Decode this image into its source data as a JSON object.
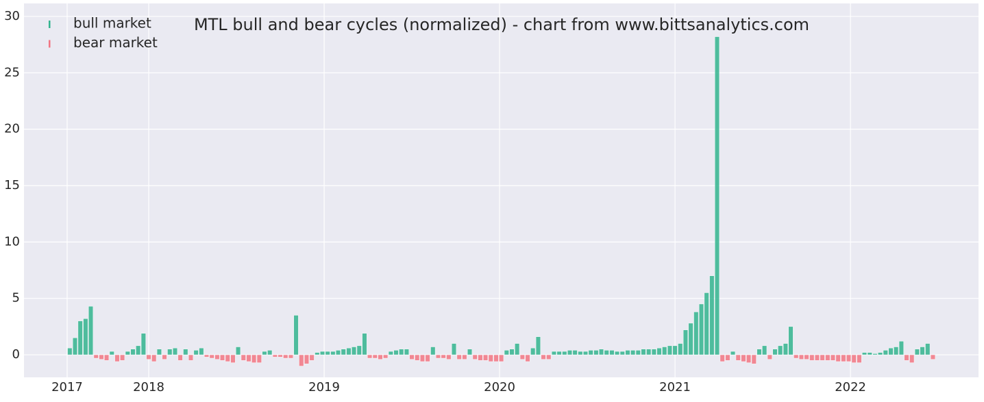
{
  "chart_data": {
    "type": "bar",
    "title": "MTL bull and bear cycles (normalized)  - chart from www.bittsanalytics.com",
    "x": [
      2017.55,
      2017.58,
      2017.61,
      2017.64,
      2017.67,
      2017.7,
      2017.73,
      2017.76,
      2017.79,
      2017.82,
      2017.85,
      2017.88,
      2017.91,
      2017.94,
      2017.97,
      2018,
      2018.03,
      2018.06,
      2018.09,
      2018.12,
      2018.15,
      2018.18,
      2018.21,
      2018.24,
      2018.27,
      2018.3,
      2018.33,
      2018.36,
      2018.39,
      2018.42,
      2018.45,
      2018.48,
      2018.51,
      2018.54,
      2018.57,
      2018.6,
      2018.63,
      2018.66,
      2018.69,
      2018.72,
      2018.75,
      2018.78,
      2018.81,
      2018.84,
      2018.87,
      2018.9,
      2018.93,
      2018.96,
      2018.99,
      2019.02,
      2019.05,
      2019.08,
      2019.11,
      2019.14,
      2019.17,
      2019.2,
      2019.23,
      2019.26,
      2019.29,
      2019.32,
      2019.35,
      2019.38,
      2019.41,
      2019.44,
      2019.47,
      2019.5,
      2019.53,
      2019.56,
      2019.59,
      2019.62,
      2019.65,
      2019.68,
      2019.71,
      2019.74,
      2019.77,
      2019.8,
      2019.83,
      2019.86,
      2019.89,
      2019.92,
      2019.95,
      2019.98,
      2020.01,
      2020.04,
      2020.07,
      2020.1,
      2020.13,
      2020.16,
      2020.19,
      2020.22,
      2020.25,
      2020.28,
      2020.31,
      2020.34,
      2020.37,
      2020.4,
      2020.43,
      2020.46,
      2020.49,
      2020.52,
      2020.55,
      2020.58,
      2020.61,
      2020.64,
      2020.67,
      2020.7,
      2020.73,
      2020.76,
      2020.79,
      2020.82,
      2020.85,
      2020.88,
      2020.91,
      2020.94,
      2020.97,
      2021,
      2021.03,
      2021.06,
      2021.09,
      2021.12,
      2021.15,
      2021.18,
      2021.21,
      2021.24,
      2021.27,
      2021.3,
      2021.33,
      2021.36,
      2021.39,
      2021.42,
      2021.45,
      2021.48,
      2021.51,
      2021.54,
      2021.57,
      2021.6,
      2021.63,
      2021.66,
      2021.69,
      2021.72,
      2021.75,
      2021.78,
      2021.81,
      2021.84,
      2021.87,
      2021.9,
      2021.93,
      2021.96,
      2021.99,
      2022.02,
      2022.05,
      2022.08,
      2022.11,
      2022.14,
      2022.17,
      2022.2,
      2022.23,
      2022.26,
      2022.29,
      2022.32,
      2022.35,
      2022.38,
      2022.41,
      2022.44,
      2022.47
    ],
    "series": [
      {
        "name": "bull market",
        "color": "#33b48e",
        "values": [
          0.6,
          1.5,
          3.0,
          3.2,
          4.3,
          null,
          null,
          null,
          0.3,
          null,
          null,
          0.3,
          0.5,
          0.8,
          1.9,
          null,
          null,
          0.5,
          null,
          0.5,
          0.6,
          null,
          0.5,
          null,
          0.4,
          0.6,
          null,
          null,
          null,
          null,
          null,
          null,
          0.7,
          null,
          null,
          null,
          null,
          0.3,
          0.4,
          null,
          null,
          null,
          null,
          3.5,
          null,
          null,
          null,
          0.2,
          0.3,
          0.3,
          0.3,
          0.4,
          0.5,
          0.6,
          0.7,
          0.8,
          1.9,
          null,
          null,
          null,
          null,
          0.3,
          0.4,
          0.5,
          0.5,
          null,
          null,
          null,
          null,
          0.7,
          null,
          null,
          null,
          1.0,
          null,
          null,
          0.5,
          null,
          null,
          null,
          null,
          null,
          null,
          0.4,
          0.5,
          1.0,
          null,
          null,
          0.6,
          1.6,
          null,
          null,
          0.3,
          0.3,
          0.3,
          0.4,
          0.4,
          0.3,
          0.3,
          0.4,
          0.4,
          0.5,
          0.4,
          0.4,
          0.3,
          0.3,
          0.4,
          0.4,
          0.4,
          0.5,
          0.5,
          0.5,
          0.6,
          0.7,
          0.8,
          0.8,
          1.0,
          2.2,
          2.8,
          3.8,
          4.5,
          5.5,
          7.0,
          28.2,
          null,
          null,
          0.3,
          null,
          null,
          null,
          null,
          0.5,
          0.8,
          null,
          0.5,
          0.8,
          1.0,
          2.5,
          null,
          null,
          null,
          null,
          null,
          null,
          null,
          null,
          null,
          null,
          null,
          null,
          null,
          0.2,
          0.2,
          0.1,
          0.2,
          0.4,
          0.6,
          0.7,
          1.2,
          null,
          null,
          0.5,
          0.7,
          1.0,
          null
        ]
      },
      {
        "name": "bear market",
        "color": "#f27583",
        "values": [
          null,
          null,
          null,
          null,
          null,
          -0.3,
          -0.4,
          -0.5,
          null,
          -0.6,
          -0.5,
          null,
          null,
          null,
          null,
          -0.4,
          -0.6,
          null,
          -0.4,
          null,
          null,
          -0.5,
          null,
          -0.5,
          null,
          null,
          -0.2,
          -0.3,
          -0.4,
          -0.5,
          -0.6,
          -0.7,
          null,
          -0.5,
          -0.6,
          -0.7,
          -0.7,
          null,
          null,
          -0.2,
          -0.2,
          -0.3,
          -0.3,
          null,
          -1.0,
          -0.8,
          -0.5,
          null,
          null,
          null,
          null,
          null,
          null,
          null,
          null,
          null,
          null,
          -0.3,
          -0.3,
          -0.4,
          -0.3,
          null,
          null,
          null,
          null,
          -0.4,
          -0.5,
          -0.6,
          -0.6,
          null,
          -0.3,
          -0.3,
          -0.4,
          null,
          -0.4,
          -0.4,
          null,
          -0.4,
          -0.5,
          -0.5,
          -0.6,
          -0.6,
          -0.6,
          null,
          null,
          null,
          -0.4,
          -0.6,
          null,
          null,
          -0.4,
          -0.4,
          null,
          null,
          null,
          null,
          null,
          null,
          null,
          null,
          null,
          null,
          null,
          null,
          null,
          null,
          null,
          null,
          null,
          null,
          null,
          null,
          null,
          null,
          null,
          null,
          null,
          null,
          null,
          null,
          null,
          null,
          null,
          null,
          -0.6,
          -0.5,
          null,
          -0.5,
          -0.6,
          -0.7,
          -0.8,
          null,
          null,
          -0.4,
          null,
          null,
          null,
          null,
          -0.3,
          -0.4,
          -0.4,
          -0.5,
          -0.5,
          -0.5,
          -0.5,
          -0.5,
          -0.6,
          -0.6,
          -0.6,
          -0.7,
          -0.7,
          null,
          null,
          null,
          null,
          null,
          null,
          null,
          null,
          -0.5,
          -0.7,
          null,
          null,
          null,
          -0.4
        ]
      }
    ],
    "xlim": [
      2017.289,
      2022.73
    ],
    "xticks": [
      {
        "value": 2017.535,
        "label": "2017"
      },
      2018,
      2019,
      2020,
      2021,
      2022
    ],
    "ylim": [
      -2,
      31.15
    ],
    "yticks": [
      0,
      5,
      10,
      15,
      20,
      25,
      30
    ],
    "grid": true,
    "legend": "upper left"
  }
}
